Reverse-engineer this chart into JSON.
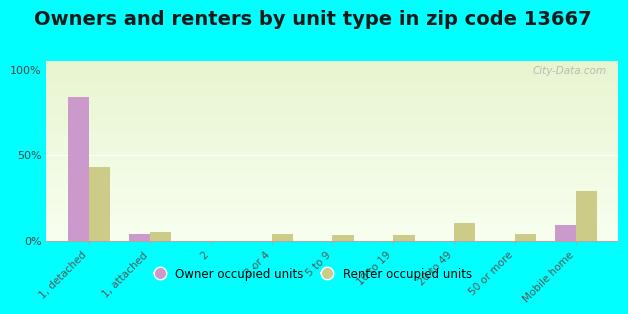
{
  "title": "Owners and renters by unit type in zip code 13667",
  "categories": [
    "1, detached",
    "1, attached",
    "2",
    "3 or 4",
    "5 to 9",
    "10 to 19",
    "20 to 49",
    "50 or more",
    "Mobile home"
  ],
  "owner_values": [
    84,
    4,
    0,
    0,
    0,
    0,
    0,
    0,
    9
  ],
  "renter_values": [
    43,
    5,
    0,
    4,
    3,
    3,
    10,
    4,
    29
  ],
  "owner_color": "#cc99cc",
  "renter_color": "#cccc88",
  "outer_bg": "#00ffff",
  "yticklabels": [
    "0%",
    "50%",
    "100%"
  ],
  "yticks": [
    0,
    50,
    100
  ],
  "ylim": [
    0,
    105
  ],
  "bar_width": 0.35,
  "title_fontsize": 14,
  "legend_labels": [
    "Owner occupied units",
    "Renter occupied units"
  ],
  "watermark": "City-Data.com"
}
